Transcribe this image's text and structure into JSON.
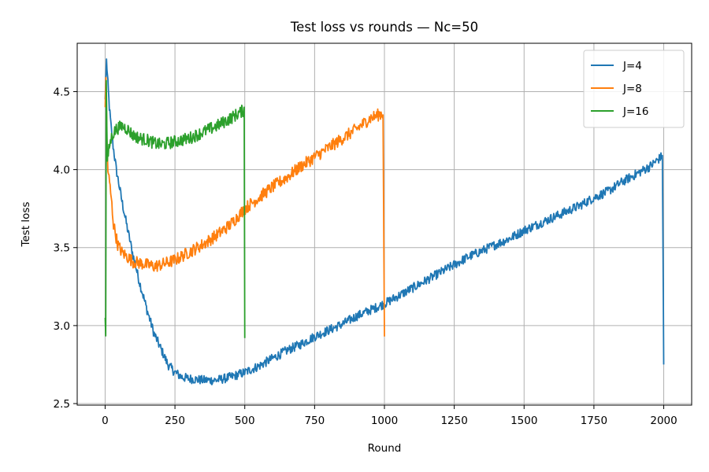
{
  "chart_data": {
    "type": "line",
    "title": "Test loss vs rounds — Nc=50",
    "xlabel": "Round",
    "ylabel": "Test loss",
    "xlim": [
      -100,
      2100
    ],
    "ylim": [
      2.49,
      4.81
    ],
    "xticks": [
      0,
      250,
      500,
      750,
      1000,
      1250,
      1500,
      1750,
      2000
    ],
    "yticks": [
      2.5,
      3.0,
      3.5,
      4.0,
      4.5
    ],
    "grid": true,
    "legend_position": "top-right",
    "series": [
      {
        "name": "J=4",
        "color": "#1f77b4",
        "x": [
          0,
          5,
          10,
          15,
          25,
          40,
          60,
          80,
          100,
          120,
          150,
          175,
          200,
          225,
          250,
          275,
          300,
          350,
          400,
          450,
          500,
          550,
          600,
          650,
          700,
          750,
          800,
          850,
          900,
          950,
          1000,
          1050,
          1100,
          1150,
          1200,
          1250,
          1300,
          1350,
          1400,
          1450,
          1500,
          1550,
          1600,
          1650,
          1700,
          1750,
          1800,
          1850,
          1900,
          1950,
          1990,
          1995,
          2000
        ],
        "y": [
          4.45,
          4.7,
          4.55,
          4.4,
          4.2,
          4.0,
          3.8,
          3.62,
          3.45,
          3.3,
          3.1,
          2.95,
          2.85,
          2.75,
          2.7,
          2.67,
          2.66,
          2.65,
          2.65,
          2.67,
          2.7,
          2.74,
          2.79,
          2.84,
          2.88,
          2.93,
          2.97,
          3.01,
          3.06,
          3.1,
          3.14,
          3.19,
          3.24,
          3.29,
          3.34,
          3.39,
          3.44,
          3.48,
          3.52,
          3.56,
          3.61,
          3.65,
          3.69,
          3.73,
          3.77,
          3.82,
          3.86,
          3.92,
          3.97,
          4.02,
          4.08,
          4.09,
          2.75
        ],
        "noise": 0.03
      },
      {
        "name": "J=8",
        "color": "#ff7f0e",
        "x": [
          0,
          3,
          6,
          10,
          20,
          30,
          45,
          60,
          80,
          100,
          125,
          150,
          175,
          200,
          250,
          300,
          350,
          400,
          450,
          500,
          550,
          600,
          650,
          700,
          750,
          800,
          850,
          900,
          950,
          990,
          995,
          1000
        ],
        "y": [
          4.4,
          4.6,
          4.2,
          4.0,
          3.85,
          3.65,
          3.52,
          3.47,
          3.44,
          3.41,
          3.4,
          3.39,
          3.38,
          3.39,
          3.42,
          3.47,
          3.52,
          3.58,
          3.65,
          3.75,
          3.82,
          3.89,
          3.95,
          4.02,
          4.08,
          4.14,
          4.2,
          4.26,
          4.33,
          4.36,
          4.35,
          2.93
        ],
        "noise": 0.04
      },
      {
        "name": "J=16",
        "color": "#2ca02c",
        "x": [
          0,
          2,
          4,
          8,
          15,
          25,
          40,
          60,
          80,
          100,
          125,
          150,
          175,
          200,
          250,
          300,
          350,
          400,
          450,
          495,
          498,
          500
        ],
        "y": [
          3.05,
          2.96,
          4.55,
          4.05,
          4.15,
          4.22,
          4.26,
          4.28,
          4.26,
          4.22,
          4.2,
          4.19,
          4.17,
          4.16,
          4.18,
          4.2,
          4.24,
          4.28,
          4.33,
          4.38,
          4.4,
          2.92
        ],
        "noise": 0.04
      }
    ]
  }
}
